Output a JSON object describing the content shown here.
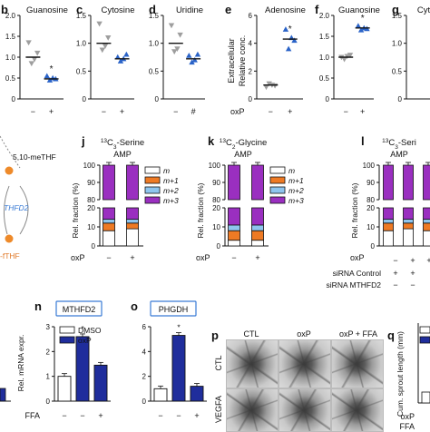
{
  "panels": {
    "b": {
      "letter": "b",
      "title": "Guanosine"
    },
    "c": {
      "letter": "c",
      "title": "Cytosine"
    },
    "d": {
      "letter": "d",
      "title": "Uridine"
    },
    "e": {
      "letter": "e",
      "title": "Adenosine",
      "ylabel1": "Extracellular",
      "ylabel2": "Relative conc."
    },
    "f": {
      "letter": "f",
      "title": "Guanosine"
    },
    "g": {
      "letter": "g",
      "title": "Cyt"
    },
    "j": {
      "letter": "j",
      "title": "13C3-Serine",
      "sup": "13",
      "sub": "3",
      "name": "-Serine",
      "subtitle": "AMP"
    },
    "k": {
      "letter": "k",
      "title": "13C2-Glycine",
      "sup": "13",
      "sub": "2",
      "name": "-Glycine",
      "subtitle": "AMP"
    },
    "l": {
      "letter": "l",
      "title": "13C3-Seri",
      "sup": "13",
      "sub": "3",
      "name": "-Seri",
      "subtitle": "AMP"
    },
    "n": {
      "letter": "n",
      "title": "MTHFD2",
      "ylabel": "Rel. mRNA expr."
    },
    "o": {
      "letter": "o",
      "title": "PHGDH"
    },
    "p": {
      "letter": "p",
      "col1": "CTL",
      "col2": "oxP",
      "col3": "oxP + FFA",
      "row1": "CTL",
      "row2": "VEGFA"
    },
    "q": {
      "letter": "q",
      "ylabel": "Cum. sprout length (mm)"
    }
  },
  "pathway": {
    "metabolite1": "5,10-meTHF",
    "enzyme": "THFD2",
    "metabolite2": "-fTHF"
  },
  "axis_labels": {
    "oxP": "oxP",
    "FFA": "FFA",
    "rel_fraction": "Rel. fraction (%)",
    "sirna_control": "siRNA Control",
    "sirna_mthfd2": "siRNA MTHFD2",
    "minus": "−",
    "plus": "+",
    "hash": "#",
    "star": "*"
  },
  "legend_mid": [
    "m",
    "m+1",
    "m+2",
    "m+3"
  ],
  "legend_n": [
    "DMSO",
    "oxP"
  ],
  "colors": {
    "purple": "#9a2fc0",
    "orange": "#ee7a24",
    "lightblue": "#8ec5ee",
    "white": "#ffffff",
    "navy": "#1f2d9c",
    "triangle_gray": "#9e9e9e",
    "triangle_blue": "#2a63c8",
    "label_blue": "#3a7bd5",
    "label_orange": "#e07a2a"
  },
  "chart_data": [
    {
      "id": "b",
      "type": "scatter",
      "title": "Guanosine",
      "ylim": [
        0,
        2.0
      ],
      "yticks": [
        "0",
        "0.5",
        "1.0",
        "1.5",
        "2.0"
      ],
      "categories": [
        "−",
        "+"
      ],
      "means": [
        1.0,
        0.48
      ],
      "points": [
        [
          1.35,
          0.85,
          0.95,
          1.1
        ],
        [
          0.55,
          0.45,
          0.5,
          0.48
        ]
      ],
      "stars": [
        false,
        true
      ]
    },
    {
      "id": "c",
      "type": "scatter",
      "title": "Cytosine",
      "ylim": [
        0,
        1.5
      ],
      "yticks": [
        "0",
        "0.5",
        "1.0",
        "1.5"
      ],
      "categories": [
        "−",
        "+"
      ],
      "means": [
        1.0,
        0.72
      ],
      "points": [
        [
          1.35,
          0.88,
          0.95,
          1.1
        ],
        [
          0.75,
          0.68,
          0.72,
          0.8
        ]
      ],
      "stars": [
        false,
        false
      ]
    },
    {
      "id": "d",
      "type": "scatter",
      "title": "Uridine",
      "ylim": [
        0,
        1.5
      ],
      "yticks": [
        "0",
        "0.5",
        "1.0",
        "1.5"
      ],
      "categories": [
        "−",
        "#"
      ],
      "means": [
        1.0,
        0.72
      ],
      "points": [
        [
          1.32,
          0.85,
          0.9,
          1.15
        ],
        [
          0.78,
          0.66,
          0.7,
          0.8
        ]
      ],
      "stars": [
        false,
        false
      ]
    },
    {
      "id": "e",
      "type": "scatter",
      "title": "Adenosine",
      "ylim": [
        0,
        6
      ],
      "yticks": [
        "0",
        "2",
        "4",
        "6"
      ],
      "categories": [
        "−",
        "+"
      ],
      "means": [
        1.0,
        4.3
      ],
      "points": [
        [
          0.85,
          1.1,
          1.0,
          0.95
        ],
        [
          5.0,
          3.6,
          4.4,
          4.2
        ]
      ],
      "stars": [
        false,
        true
      ]
    },
    {
      "id": "f",
      "type": "scatter",
      "title": "Guanosine",
      "ylim": [
        0,
        2.0
      ],
      "yticks": [
        "0",
        "0.5",
        "1.0",
        "1.5",
        "2.0"
      ],
      "categories": [
        "−",
        "+"
      ],
      "means": [
        1.0,
        1.7
      ],
      "points": [
        [
          1.0,
          0.95,
          1.02,
          1.05
        ],
        [
          1.75,
          1.65,
          1.7,
          1.68
        ]
      ],
      "stars": [
        false,
        true
      ]
    },
    {
      "id": "g",
      "type": "scatter",
      "title": "Cyt",
      "ylim": [
        0,
        1.5
      ],
      "yticks": [
        "0",
        "0.5",
        "1.0",
        "1.5"
      ],
      "categories": [],
      "means": [],
      "points": [],
      "stars": []
    },
    {
      "id": "j",
      "type": "bar",
      "title": "13C3-Serine",
      "subtitle": "AMP",
      "yticks_top": [
        "80",
        "90",
        "100"
      ],
      "yticks_bottom": [
        "0",
        "10",
        "20"
      ],
      "categories": [
        "−",
        "+"
      ],
      "series": [
        {
          "name": "m",
          "values": [
            8,
            9
          ]
        },
        {
          "name": "m+1",
          "values": [
            4,
            3
          ]
        },
        {
          "name": "m+2",
          "values": [
            2,
            2
          ]
        },
        {
          "name": "m+3",
          "values": [
            86,
            86
          ]
        }
      ]
    },
    {
      "id": "k",
      "type": "bar",
      "title": "13C2-Glycine",
      "subtitle": "AMP",
      "yticks_top": [
        "80",
        "90",
        "100"
      ],
      "yticks_bottom": [
        "0",
        "10",
        "20"
      ],
      "categories": [
        "−",
        "+"
      ],
      "series": [
        {
          "name": "m",
          "values": [
            3,
            3
          ]
        },
        {
          "name": "m+1",
          "values": [
            5,
            5
          ]
        },
        {
          "name": "m+2",
          "values": [
            3,
            3
          ]
        },
        {
          "name": "m+3",
          "values": [
            89,
            89
          ]
        }
      ]
    },
    {
      "id": "l",
      "type": "bar",
      "title": "13C3-Seri",
      "subtitle": "AMP",
      "yticks_top": [
        "80",
        "90",
        "100"
      ],
      "yticks_bottom": [
        "0",
        "10",
        "20"
      ],
      "categories": [
        "",
        "",
        "",
        ""
      ],
      "series": [
        {
          "name": "m",
          "values": [
            8,
            9,
            8,
            9
          ]
        },
        {
          "name": "m+1",
          "values": [
            4,
            3,
            4,
            3
          ]
        },
        {
          "name": "m+2",
          "values": [
            2,
            2,
            2,
            2
          ]
        },
        {
          "name": "m+3",
          "values": [
            86,
            86,
            86,
            86
          ]
        }
      ]
    },
    {
      "id": "n",
      "type": "bar",
      "title": "MTHFD2",
      "ylim": [
        0,
        3
      ],
      "yticks": [
        "0",
        "1",
        "2",
        "3"
      ],
      "categories": [
        "−",
        "−",
        "+"
      ],
      "colors": [
        "white",
        "navy",
        "navy"
      ],
      "values": [
        1.0,
        2.6,
        1.45
      ],
      "marks": [
        "",
        "*",
        "#"
      ]
    },
    {
      "id": "o",
      "type": "bar",
      "title": "PHGDH",
      "ylim": [
        0,
        6
      ],
      "yticks": [
        "0",
        "2",
        "4",
        "6"
      ],
      "categories": [
        "−",
        "−",
        "+"
      ],
      "colors": [
        "white",
        "navy",
        "navy"
      ],
      "values": [
        1.0,
        5.3,
        1.2
      ],
      "marks": [
        "",
        "*",
        "#"
      ]
    }
  ]
}
